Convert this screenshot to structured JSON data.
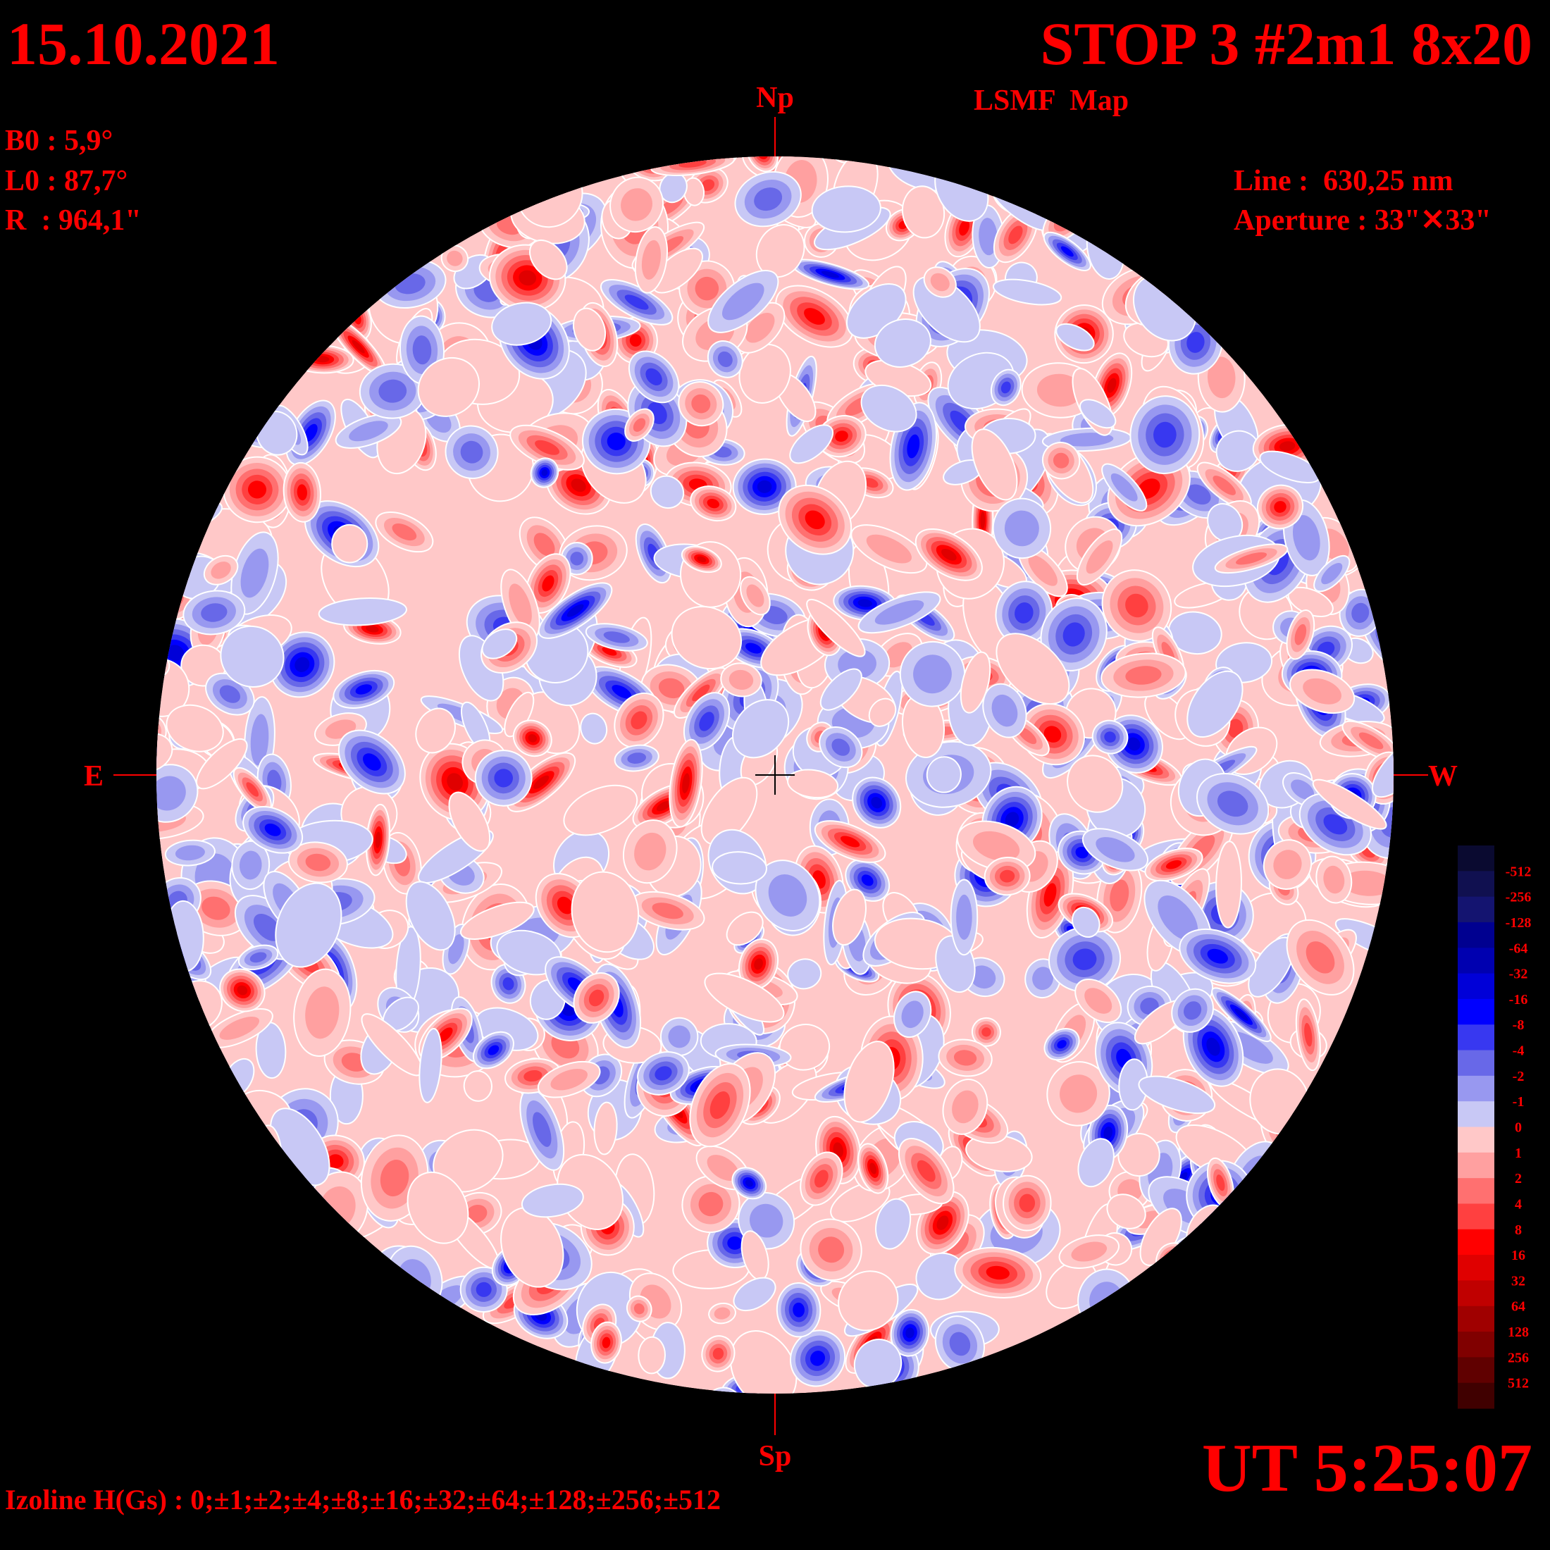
{
  "header": {
    "date": "15.10.2021",
    "title": "STOP 3 #2m1 8x20",
    "subtitle": "LSMF  Map"
  },
  "parameters": {
    "b0": "B0 : 5,9°",
    "l0": "L0 : 87,7°",
    "r": "R  : 964,1\"",
    "line": "Line :  630,25 nm",
    "aperture": "Aperture : 33\"✕33\""
  },
  "directions": {
    "north": "Np",
    "south": "Sp",
    "east": "E",
    "west": "W"
  },
  "time": "UT 5:25:07",
  "izoline": "Izoline H(Gs) : 0;±1;±2;±4;±8;±16;±32;±64;±128;±256;±512",
  "colorbar": {
    "labels": [
      "-512",
      "-256",
      "-128",
      "-64",
      "-32",
      "-16",
      "-8",
      "-4",
      "-2",
      "-1",
      "0",
      "1",
      "2",
      "4",
      "8",
      "16",
      "32",
      "64",
      "128",
      "256",
      "512"
    ],
    "colors": [
      "#0a0a30",
      "#101050",
      "#141470",
      "#000090",
      "#0000b0",
      "#0000d8",
      "#0000ff",
      "#3838f0",
      "#6868e8",
      "#9898f0",
      "#c8c8f5",
      "#ffc8c8",
      "#ffa0a0",
      "#ff7070",
      "#ff4040",
      "#ff0000",
      "#e00000",
      "#c00000",
      "#a00000",
      "#800000",
      "#600000",
      "#400000"
    ]
  }
}
